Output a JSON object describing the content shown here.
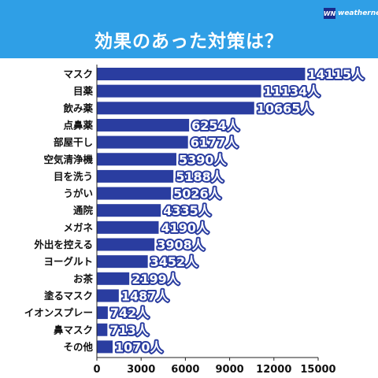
{
  "header": {
    "title": "効果のあった対策は？"
  },
  "logo": {
    "mark": "WN",
    "text": "weathernews"
  },
  "colors": {
    "header_bg": "#2f9fe6",
    "bar": "#2a3da0",
    "axis": "#222222"
  },
  "chart_data": {
    "type": "bar",
    "orientation": "horizontal",
    "title": "効果のあった対策は？",
    "categories": [
      "マスク",
      "目薬",
      "飲み薬",
      "点鼻薬",
      "部屋干し",
      "空気清浄機",
      "目を洗う",
      "うがい",
      "通院",
      "メガネ",
      "外出を控える",
      "ヨーグルト",
      "お茶",
      "塗るマスク",
      "イオンスプレー",
      "鼻マスク",
      "その他"
    ],
    "values": [
      14115,
      11134,
      10665,
      6254,
      6177,
      5390,
      5188,
      5026,
      4335,
      4190,
      3908,
      3452,
      2199,
      1487,
      742,
      713,
      1070
    ],
    "value_suffix": "人",
    "xlim": [
      0,
      15000
    ],
    "xticks": [
      0,
      3000,
      6000,
      9000,
      12000,
      15000
    ],
    "grid": false
  }
}
